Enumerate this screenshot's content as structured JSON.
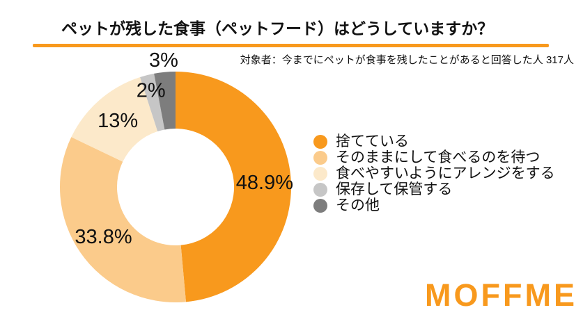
{
  "page": {
    "background": "#ffffff"
  },
  "header": {
    "title": "ペットが残した食事（ペットフード）はどうしていますか？",
    "subtitle": "対象者：今までにペットが食事を残したことがあると回答した人 317人",
    "rule_color": "#F8991D"
  },
  "chart_data": {
    "type": "pie",
    "variant": "donut",
    "title": "ペットが残した食事（ペットフード）はどうしていますか？",
    "categories": [
      "捨てている",
      "そのままにして食べるのを待つ",
      "食べやすいようにアレンジをする",
      "保存して保管する",
      "その他"
    ],
    "values": [
      48.9,
      33.8,
      13,
      2,
      3
    ],
    "display_labels": [
      "48.9%",
      "33.8%",
      "13%",
      "2%",
      "3%"
    ],
    "colors": [
      "#F8991D",
      "#FBCB8B",
      "#FCE9CA",
      "#C6C6C6",
      "#7D7D7D"
    ],
    "start_angle_deg": 0,
    "direction": "clockwise",
    "legend_position": "right",
    "label_radii": [
      128,
      126,
      126,
      143,
      183
    ]
  },
  "logo": {
    "text": "MOFFME",
    "color": "#F8991D"
  }
}
